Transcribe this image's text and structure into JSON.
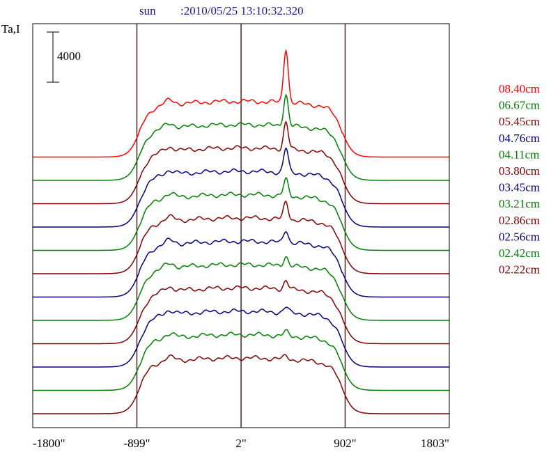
{
  "header": {
    "object": "sun",
    "timestamp": ":2010/05/25 13:10:32.320"
  },
  "chart_data": {
    "type": "line",
    "title": "sun    :2010/05/25 13:10:32.320",
    "ylabel": "Ta,I",
    "scale_bar_label": "4000",
    "scale_bar_value": 4000,
    "x_tick_labels": [
      "-1800\"",
      "-899\"",
      "2\"",
      "902\"",
      "1803\""
    ],
    "x_ticks": [
      -1800,
      -899,
      2,
      902,
      1803
    ],
    "xlim": [
      -1800,
      1803
    ],
    "vertical_markers": [
      -899,
      2,
      902
    ],
    "y_axis_ticks": false,
    "grid": false,
    "legend_position": "right",
    "series": [
      {
        "name": "08.40cm",
        "color": "#ff0000",
        "offset_index": 11,
        "peak": 1.0
      },
      {
        "name": "06.67cm",
        "color": "#008000",
        "offset_index": 10,
        "peak": 0.58
      },
      {
        "name": "05.45cm",
        "color": "#800000",
        "offset_index": 9,
        "peak": 0.5
      },
      {
        "name": "04.76cm",
        "color": "#000080",
        "offset_index": 8,
        "peak": 0.45
      },
      {
        "name": "04.11cm",
        "color": "#008000",
        "offset_index": 7,
        "peak": 0.3
      },
      {
        "name": "03.80cm",
        "color": "#800000",
        "offset_index": 6,
        "peak": 0.32
      },
      {
        "name": "03.45cm",
        "color": "#000080",
        "offset_index": 5,
        "peak": 0.24
      },
      {
        "name": "03.21cm",
        "color": "#008000",
        "offset_index": 4,
        "peak": 0.18
      },
      {
        "name": "02.86cm",
        "color": "#800000",
        "offset_index": 3,
        "peak": 0.16
      },
      {
        "name": "02.56cm",
        "color": "#000080",
        "offset_index": 2,
        "peak": 0.1
      },
      {
        "name": "02.42cm",
        "color": "#008000",
        "offset_index": 1,
        "peak": 0.08
      },
      {
        "name": "02.22cm",
        "color": "#800000",
        "offset_index": 0,
        "peak": 0.06
      }
    ]
  }
}
